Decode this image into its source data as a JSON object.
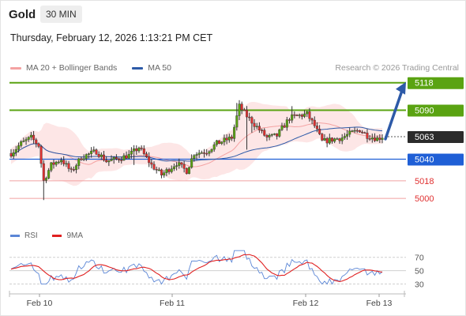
{
  "header": {
    "asset": "Gold",
    "timeframe": "30 MIN",
    "datetime": "Thursday, February 12, 2026 1:13:21 PM CET"
  },
  "legend": {
    "bollinger": {
      "label": "MA 20 + Bollinger Bands",
      "color": "#f4a2a2"
    },
    "ma50": {
      "label": "MA 50",
      "color": "#2d5aa8"
    }
  },
  "credit": "Research © 2026 Trading Central",
  "rsi_legend": {
    "rsi": {
      "label": "RSI",
      "color": "#5b86d6"
    },
    "ma9": {
      "label": "9MA",
      "color": "#e02020"
    }
  },
  "chart_data": {
    "type": "candlestick",
    "x_ticks": [
      "Feb 10",
      "Feb 11",
      "Feb 12",
      "Feb 13"
    ],
    "ylim": [
      4980,
      5125
    ],
    "levels": [
      {
        "value": 5118,
        "label": "5118",
        "kind": "resistance",
        "color": "#5aa312"
      },
      {
        "value": 5090,
        "label": "5090",
        "kind": "resistance",
        "color": "#5aa312"
      },
      {
        "value": 5063,
        "label": "5063",
        "kind": "last",
        "color": "#2b2b2b"
      },
      {
        "value": 5040,
        "label": "5040",
        "kind": "pivot",
        "color": "#1f5fd6"
      },
      {
        "value": 5018,
        "label": "5018",
        "kind": "support",
        "color": "#e03030"
      },
      {
        "value": 5000,
        "label": "5000",
        "kind": "support",
        "color": "#e03030"
      }
    ],
    "arrow": {
      "from": 5063,
      "to": 5118,
      "color": "#2d5aa8"
    },
    "rsi": {
      "ylim": [
        20,
        85
      ],
      "ticks": [
        70,
        50,
        30
      ]
    }
  }
}
